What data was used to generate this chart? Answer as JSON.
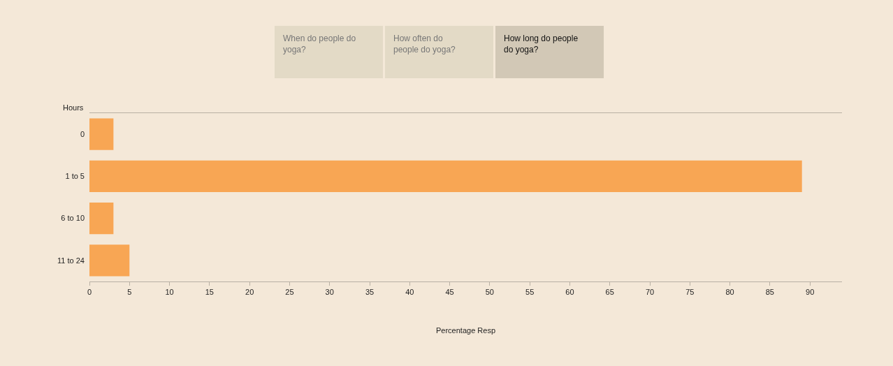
{
  "chart_data": {
    "type": "bar",
    "orientation": "horizontal",
    "categories": [
      "0",
      "1 to 5",
      "6 to 10",
      "11 to 24"
    ],
    "values": [
      3,
      89,
      3,
      5
    ],
    "color": "#f8a654",
    "xlabel": "Percentage Resp",
    "ylabel": "Hours",
    "xlim": [
      0,
      94
    ],
    "xticks": [
      0,
      5,
      10,
      15,
      20,
      25,
      30,
      35,
      40,
      45,
      50,
      55,
      60,
      65,
      70,
      75,
      80,
      85,
      90
    ],
    "grid": false,
    "legend": false,
    "annotations": [
      "When do people do yoga?",
      "How often do people do yoga?",
      "How long do people do yoga?"
    ]
  }
}
